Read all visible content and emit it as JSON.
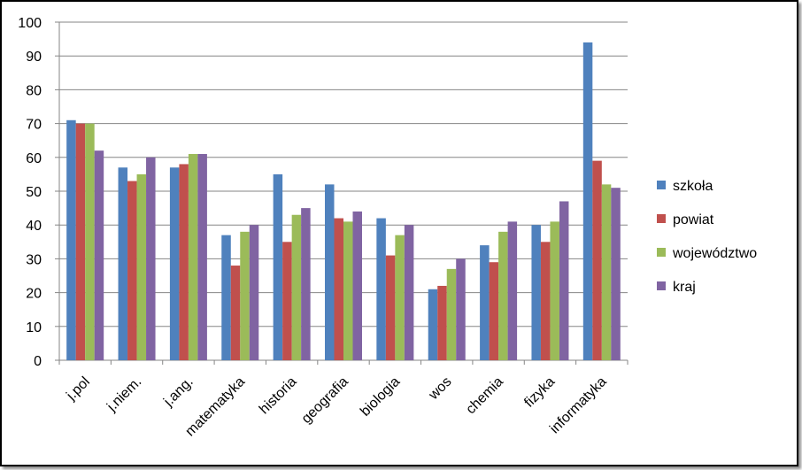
{
  "chart_data": {
    "type": "bar",
    "title": "",
    "xlabel": "",
    "ylabel": "",
    "ylim": [
      0,
      100
    ],
    "yticks": [
      0,
      10,
      20,
      30,
      40,
      50,
      60,
      70,
      80,
      90,
      100
    ],
    "grid": true,
    "legend_position": "right",
    "categories": [
      "j.pol",
      "j.niem.",
      "j.ang.",
      "matematyka",
      "historia",
      "geografia",
      "biologia",
      "wos",
      "chemia",
      "fizyka",
      "informatyka"
    ],
    "series": [
      {
        "name": "szkoła",
        "color": "#4F81BD",
        "values": [
          71,
          57,
          57,
          37,
          55,
          52,
          42,
          21,
          34,
          40,
          94
        ]
      },
      {
        "name": "powiat",
        "color": "#C0504D",
        "values": [
          70,
          53,
          58,
          28,
          35,
          42,
          31,
          22,
          29,
          35,
          59
        ]
      },
      {
        "name": "województwo",
        "color": "#9BBB59",
        "values": [
          70,
          55,
          61,
          38,
          43,
          41,
          37,
          27,
          38,
          41,
          52
        ]
      },
      {
        "name": "kraj",
        "color": "#8064A2",
        "values": [
          62,
          60,
          61,
          40,
          45,
          44,
          40,
          30,
          41,
          47,
          51
        ]
      }
    ]
  }
}
